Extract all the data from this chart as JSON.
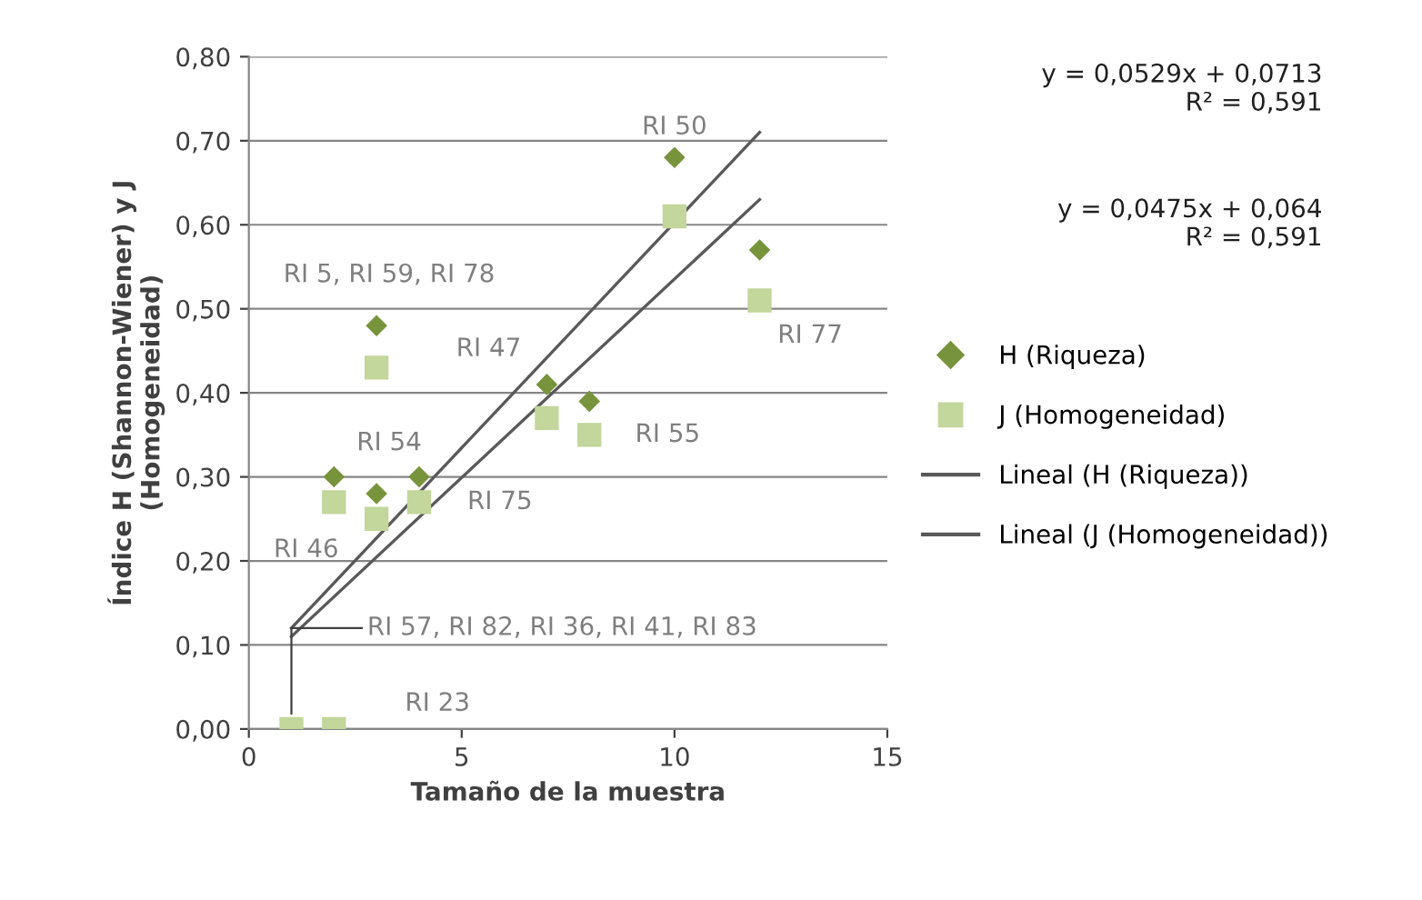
{
  "chart_data": {
    "type": "scatter",
    "xlabel": "Tamaño de la muestra",
    "ylabel": "Índice H (Shannon-Wiener) y J\n(Homogeneidad)",
    "xlim": [
      0,
      15
    ],
    "xticks": [
      0,
      5,
      10,
      15
    ],
    "ylim": [
      0,
      0.8
    ],
    "yticks": [
      {
        "value": 0,
        "label": "0,00"
      },
      {
        "value": 0.1,
        "label": "0,10"
      },
      {
        "value": 0.2,
        "label": "0,20"
      },
      {
        "value": 0.3,
        "label": "0,30"
      },
      {
        "value": 0.4,
        "label": "0,40"
      },
      {
        "value": 0.5,
        "label": "0,50"
      },
      {
        "value": 0.6,
        "label": "0,60"
      },
      {
        "value": 0.7,
        "label": "0,70"
      },
      {
        "value": 0.8,
        "label": "0,80"
      }
    ],
    "grid": "y",
    "legend": "right",
    "series": [
      {
        "name": "H (Riqueza)",
        "marker": "diamond",
        "color": "#77933c",
        "x": [
          2,
          3,
          3,
          4,
          7,
          8,
          10,
          12
        ],
        "values": [
          0.3,
          0.48,
          0.28,
          0.3,
          0.41,
          0.39,
          0.68,
          0.57
        ]
      },
      {
        "name": "J (Homogeneidad)",
        "marker": "square",
        "color": "#c3d69b",
        "x": [
          1,
          2,
          2,
          3,
          3,
          4,
          7,
          8,
          10,
          12
        ],
        "values": [
          0,
          0,
          0.27,
          0.43,
          0.25,
          0.27,
          0.37,
          0.35,
          0.61,
          0.51
        ]
      },
      {
        "name": "Lineal (H (Riqueza))",
        "type": "line",
        "color": "#595959",
        "x": [
          1,
          12
        ],
        "values": [
          0.12,
          0.71
        ]
      },
      {
        "name": "Lineal (J (Homogeneidad))",
        "type": "line",
        "color": "#595959",
        "x": [
          1,
          12
        ],
        "values": [
          0.11,
          0.63
        ]
      }
    ],
    "annotations": [
      {
        "text": "RI 50",
        "x": 10,
        "y": 0.68
      },
      {
        "text": "RI 5, RI 59, RI 78",
        "x": 3,
        "y": 0.48
      },
      {
        "text": "RI 77",
        "x": 12,
        "y": 0.51
      },
      {
        "text": "RI 47",
        "x": 7,
        "y": 0.41
      },
      {
        "text": "RI 55",
        "x": 8,
        "y": 0.35
      },
      {
        "text": "RI 54",
        "x": 3,
        "y": 0.28
      },
      {
        "text": "RI 75",
        "x": 4,
        "y": 0.27
      },
      {
        "text": "RI 46",
        "x": 2,
        "y": 0.27
      },
      {
        "text": "RI 57, RI 82, RI 36, RI 41, RI 83",
        "x": 1,
        "y": 0
      },
      {
        "text": "RI 23",
        "x": 2,
        "y": 0
      },
      "y = 0,0529x + 0,0713\nR² = 0,591",
      "y = 0,0475x + 0,064\nR² = 0,591"
    ]
  }
}
